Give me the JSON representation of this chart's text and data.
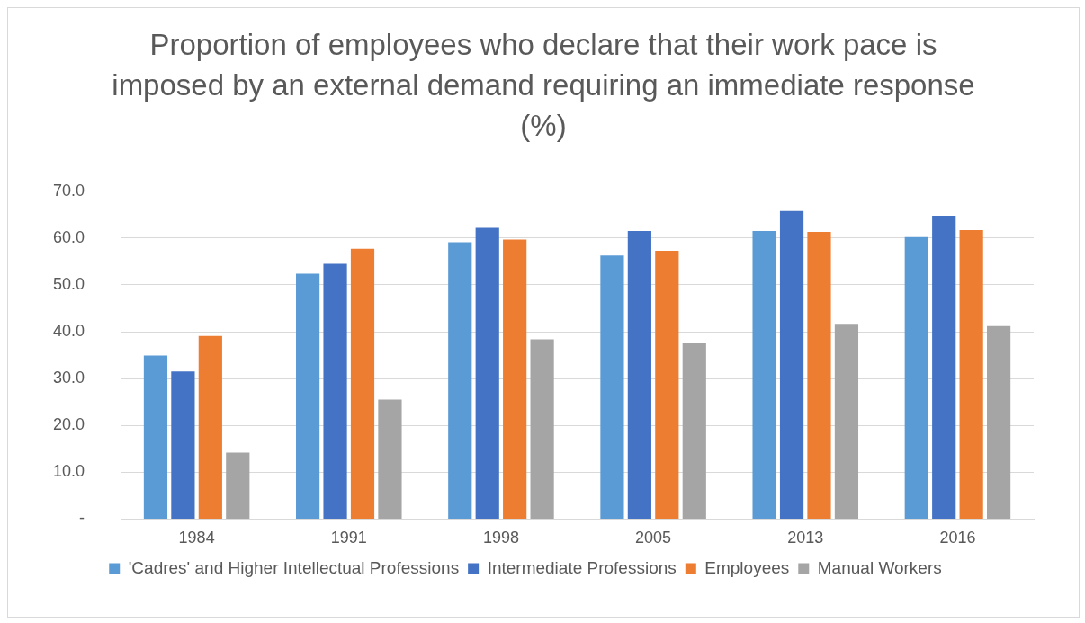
{
  "chart_data": {
    "type": "bar",
    "title": "Proportion of employees who declare that their work pace is imposed by an external demand  requiring an immediate response (%)",
    "categories": [
      "1984",
      "1991",
      "1998",
      "2005",
      "2013",
      "2016"
    ],
    "series": [
      {
        "name": "'Cadres' and Higher Intellectual Professions",
        "color": "#5b9bd5",
        "values": [
          34.9,
          52.4,
          59.1,
          56.3,
          61.5,
          60.2
        ]
      },
      {
        "name": "Intermediate Professions",
        "color": "#4472c4",
        "values": [
          31.5,
          54.5,
          62.2,
          61.5,
          65.8,
          64.8
        ]
      },
      {
        "name": "Employees",
        "color": "#ed7d31",
        "values": [
          39.1,
          57.7,
          59.7,
          57.3,
          61.3,
          61.7
        ]
      },
      {
        "name": "Manual Workers",
        "color": "#a5a5a5",
        "values": [
          14.2,
          25.5,
          38.4,
          37.7,
          41.7,
          41.2
        ]
      }
    ],
    "ylim": [
      0,
      70
    ],
    "yticks": [
      {
        "value": 0,
        "label": "-"
      },
      {
        "value": 10,
        "label": "10.0"
      },
      {
        "value": 20,
        "label": "20.0"
      },
      {
        "value": 30,
        "label": "30.0"
      },
      {
        "value": 40,
        "label": "40.0"
      },
      {
        "value": 50,
        "label": "50.0"
      },
      {
        "value": 60,
        "label": "60.0"
      },
      {
        "value": 70,
        "label": "70.0"
      }
    ],
    "grid": "y",
    "legend": "bottom"
  }
}
